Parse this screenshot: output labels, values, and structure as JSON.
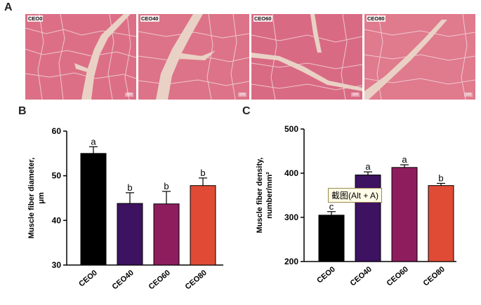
{
  "panels": {
    "a": "A",
    "b": "B",
    "c": "C"
  },
  "micrographs": [
    {
      "label": "CEO0",
      "scale": "100"
    },
    {
      "label": "CEO40",
      "scale": "100"
    },
    {
      "label": "CEO60",
      "scale": "100"
    },
    {
      "label": "CEO80",
      "scale": "100"
    }
  ],
  "tooltip": "截图(Alt + A)",
  "chart_data": [
    {
      "type": "bar",
      "categories": [
        "CEO0",
        "CEO40",
        "CEO60",
        "CEO80"
      ],
      "values": [
        55.0,
        43.8,
        43.7,
        47.8
      ],
      "errors": [
        1.5,
        2.4,
        2.8,
        1.7
      ],
      "significance": [
        "a",
        "b",
        "b",
        "b"
      ],
      "colors": [
        "#000000",
        "#3d1260",
        "#8e1d5e",
        "#e04b36"
      ],
      "ylabel": "Muscle fiber diameter, μm",
      "ylim": [
        30,
        60
      ],
      "yticks": [
        30,
        40,
        50,
        60
      ]
    },
    {
      "type": "bar",
      "categories": [
        "CEO0",
        "CEO40",
        "CEO60",
        "CEO80"
      ],
      "values": [
        305,
        396,
        413,
        372
      ],
      "errors": [
        8,
        7,
        6,
        5
      ],
      "significance": [
        "c",
        "a",
        "a",
        "b"
      ],
      "colors": [
        "#000000",
        "#3d1260",
        "#8e1d5e",
        "#e04b36"
      ],
      "ylabel": "Muscle fiber density, number/mm²",
      "ylim": [
        200,
        500
      ],
      "yticks": [
        200,
        300,
        400,
        500
      ]
    }
  ]
}
